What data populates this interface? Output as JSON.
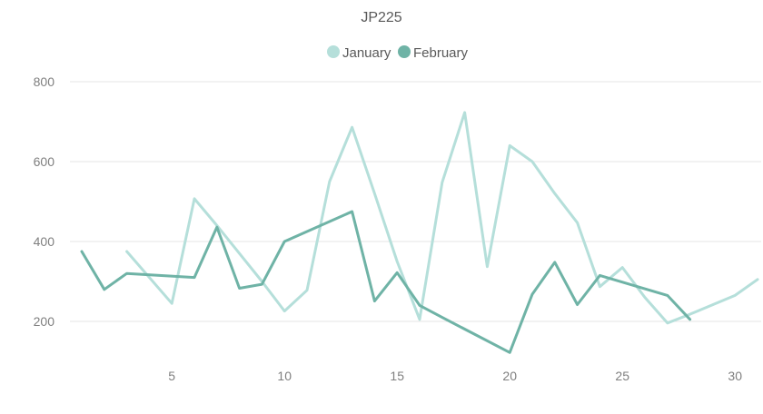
{
  "chart_data": {
    "type": "line",
    "title": "JP225",
    "xlabel": "",
    "ylabel": "",
    "xlim": [
      1,
      31
    ],
    "ylim": [
      100,
      800
    ],
    "x_ticks": [
      "5",
      "10",
      "15",
      "20",
      "25",
      "30"
    ],
    "y_ticks": [
      "200",
      "400",
      "600",
      "800"
    ],
    "grid": true,
    "legend": "top-center",
    "series": [
      {
        "name": "January",
        "color": "#b5dfda",
        "x": [
          3,
          5,
          6,
          7,
          8,
          9,
          10,
          11,
          12,
          13,
          14,
          15,
          16,
          17,
          18,
          19,
          20,
          21,
          22,
          23,
          24,
          25,
          26,
          27,
          28,
          30,
          31
        ],
        "values": [
          375,
          245,
          507,
          440,
          370,
          300,
          226,
          278,
          550,
          686,
          520,
          350,
          205,
          548,
          723,
          337,
          640,
          600,
          520,
          447,
          287,
          335,
          260,
          196,
          218,
          265,
          305
        ]
      },
      {
        "name": "February",
        "color": "#6fb3a6",
        "x": [
          1,
          2,
          3,
          6,
          7,
          8,
          9,
          10,
          13,
          14,
          15,
          16,
          17,
          20,
          21,
          22,
          23,
          24,
          27,
          28
        ],
        "values": [
          375,
          280,
          320,
          310,
          436,
          283,
          293,
          400,
          475,
          251,
          322,
          240,
          210,
          122,
          268,
          348,
          242,
          315,
          265,
          205
        ]
      }
    ]
  }
}
